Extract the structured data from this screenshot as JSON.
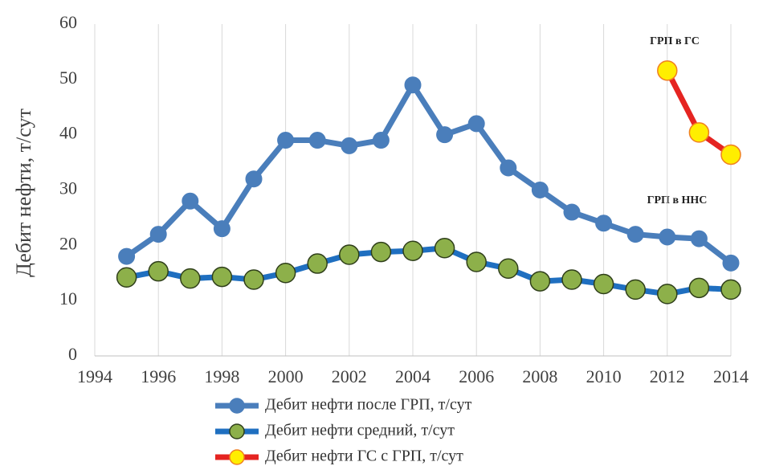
{
  "chart_data": {
    "type": "line",
    "y_label": "Дебит нефти, т/сут",
    "annotations": [
      "ГРП в ГС",
      "ГРП в ННС"
    ],
    "x": [
      1995,
      1996,
      1997,
      1998,
      1999,
      2000,
      2001,
      2002,
      2003,
      2004,
      2005,
      2006,
      2007,
      2008,
      2009,
      2010,
      2011,
      2012,
      2013,
      2014
    ],
    "series": [
      {
        "name": "Дебит нефти после ГРП, т/сут",
        "color": "#4a7ebb",
        "marker_color": "#4a7ebb",
        "values": [
          18,
          22,
          28,
          23,
          32,
          39,
          39,
          38,
          39,
          49,
          40,
          42,
          34,
          30,
          26,
          24,
          22,
          21.5,
          21.2,
          16.8
        ]
      },
      {
        "name": "Дебит нефти средний, т/сут",
        "color": "#1f6fc0",
        "marker_color": "#8db04a",
        "values": [
          14.2,
          15.3,
          14,
          14.3,
          13.8,
          15,
          16.7,
          18.3,
          18.8,
          19,
          19.5,
          17,
          15.8,
          13.5,
          13.8,
          13,
          12,
          11.2,
          12.3,
          12
        ]
      },
      {
        "name": "Дебит нефти ГС с ГРП, т/сут",
        "color": "#e52421",
        "marker_color": "#ffee00",
        "values": [
          null,
          null,
          null,
          null,
          null,
          null,
          null,
          null,
          null,
          null,
          null,
          null,
          null,
          null,
          null,
          null,
          null,
          51.6,
          40.4,
          36.4
        ]
      }
    ],
    "xlim": [
      1994,
      2014
    ],
    "xticks": [
      1994,
      1996,
      1998,
      2000,
      2002,
      2004,
      2006,
      2008,
      2010,
      2012,
      2014
    ],
    "ylim": [
      0,
      60
    ],
    "yticks": [
      0,
      10,
      20,
      30,
      40,
      50,
      60
    ],
    "grid": "x"
  }
}
